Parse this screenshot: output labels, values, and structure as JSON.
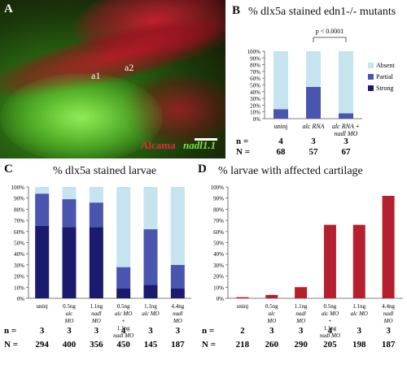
{
  "panels": {
    "A": {
      "label": "A",
      "annotations": [
        "a1",
        "a2"
      ],
      "legend_red": "Alcama",
      "legend_green": "nadl1.1",
      "colors": {
        "red": "#e6283c",
        "green": "#7fe04a"
      }
    },
    "B": {
      "label": "B",
      "title": "% dlx5a stained edn1-/- mutants"
    },
    "C": {
      "label": "C",
      "title": "% dlx5a stained larvae"
    },
    "D": {
      "label": "D",
      "title": "% larvae with affected cartilage"
    }
  },
  "chart_data": [
    {
      "id": "B",
      "type": "bar",
      "stacked": true,
      "title": "% dlx5a stained edn1-/- mutants",
      "categories": [
        [
          "uninj"
        ],
        [
          "alc RNA"
        ],
        [
          "alc RNA +",
          "nadl MO"
        ]
      ],
      "series": [
        {
          "name": "Strong",
          "color": "#1a1a6e",
          "values": [
            0,
            0,
            0
          ]
        },
        {
          "name": "Partial",
          "color": "#4a55b0",
          "values": [
            14,
            47,
            8
          ]
        },
        {
          "name": "Absent",
          "color": "#c6e3f0",
          "values": [
            86,
            53,
            92
          ]
        }
      ],
      "yticks": [
        "0%",
        "10%",
        "20%",
        "30%",
        "40%",
        "50%",
        "60%",
        "70%",
        "80%",
        "90%",
        "100%"
      ],
      "ylim": [
        0,
        100
      ],
      "legend": [
        "Absent",
        "Partial",
        "Strong"
      ],
      "annotation": "p < 0.0001",
      "n_label": "n =",
      "N_label": "N =",
      "n": [
        "4",
        "3",
        "3"
      ],
      "N": [
        "68",
        "57",
        "67"
      ]
    },
    {
      "id": "C",
      "type": "bar",
      "stacked": true,
      "title": "% dlx5a stained larvae",
      "categories": [
        [
          "uninj"
        ],
        [
          "0.5ng",
          "alc",
          "MO"
        ],
        [
          "1.1ng",
          "nadl",
          "MO"
        ],
        [
          "0.5ng",
          "alc MO",
          "+",
          "1.1ng",
          "nadl MO"
        ],
        [
          "1.1ng",
          "alc MO"
        ],
        [
          "4.4ng",
          "nadl",
          "MO"
        ]
      ],
      "series": [
        {
          "name": "Strong",
          "color": "#1a1a6e",
          "values": [
            65,
            64,
            64,
            9,
            12,
            9
          ]
        },
        {
          "name": "Partial",
          "color": "#4a55b0",
          "values": [
            29,
            25,
            22,
            19,
            50,
            21
          ]
        },
        {
          "name": "Absent",
          "color": "#c6e3f0",
          "values": [
            6,
            11,
            14,
            72,
            38,
            70
          ]
        }
      ],
      "yticks": [
        "0%",
        "10%",
        "20%",
        "30%",
        "40%",
        "50%",
        "60%",
        "70%",
        "80%",
        "90%",
        "100%"
      ],
      "ylim": [
        0,
        100
      ],
      "n_label": "n =",
      "N_label": "N =",
      "n": [
        "3",
        "3",
        "3",
        "4",
        "3",
        "3"
      ],
      "N": [
        "294",
        "400",
        "356",
        "450",
        "145",
        "187"
      ]
    },
    {
      "id": "D",
      "type": "bar",
      "title": "% larvae with affected cartilage",
      "categories": [
        [
          "uninj"
        ],
        [
          "0.5ng",
          "alc",
          "MO"
        ],
        [
          "1.1ng",
          "nadl",
          "MO"
        ],
        [
          "0.5ng",
          "alc MO",
          "+",
          "1.1ng",
          "nadl MO"
        ],
        [
          "1.1ng",
          "alc MO"
        ],
        [
          "4.4ng",
          "nadl",
          "MO"
        ]
      ],
      "values": [
        1,
        3,
        10,
        66,
        66,
        92
      ],
      "color": "#b5202e",
      "yticks": [
        "0%",
        "10%",
        "20%",
        "30%",
        "40%",
        "50%",
        "60%",
        "70%",
        "80%",
        "90%",
        "100%"
      ],
      "ylim": [
        0,
        100
      ],
      "n_label": "n =",
      "N_label": "N =",
      "n": [
        "2",
        "3",
        "3",
        "4",
        "3",
        "3"
      ],
      "N": [
        "218",
        "260",
        "290",
        "205",
        "198",
        "187"
      ]
    }
  ]
}
